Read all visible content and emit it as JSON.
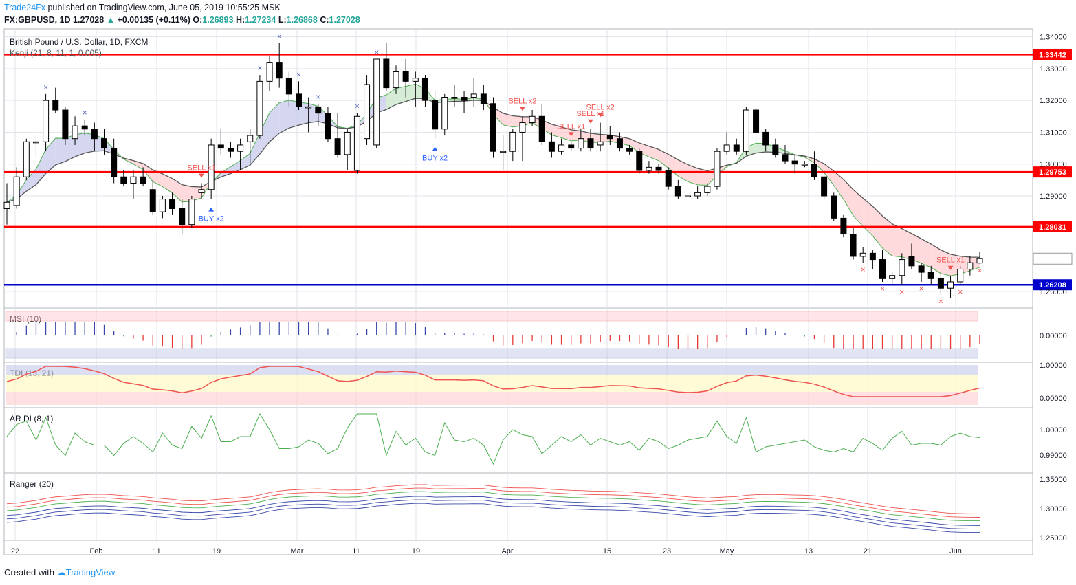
{
  "header": {
    "brand": "Trade24Fx",
    "published": " published on TradingView.com, June 05, 2019 10:55:25 MSK",
    "symbol": "FX:GBPUSD, 1D",
    "last": "1.27028",
    "change": "+0.00135 (+0.11%)",
    "o_label": "O:",
    "o": "1.26893",
    "h_label": "H:",
    "h": "1.27234",
    "l_label": "L:",
    "l": "1.26868",
    "c_label": "C:",
    "c": "1.27028"
  },
  "footer": {
    "created": "Created with",
    "brand": "TradingView"
  },
  "chart_data": {
    "type": "candlestick",
    "title": "British Pound / U.S. Dollar, 1D, FXCM",
    "indicator_label": "Kenji (21, 8, 11, 1, 0.005)",
    "x_ticks": [
      "22",
      "Feb",
      "11",
      "19",
      "Mar",
      "11",
      "19",
      "Apr",
      "15",
      "23",
      "May",
      "13",
      "21",
      "Jun"
    ],
    "y_ticks": [
      "1.34000",
      "1.33000",
      "1.32000",
      "1.31000",
      "1.30000",
      "1.29000",
      "1.27028",
      "1.26000"
    ],
    "y_range": [
      1.255,
      1.3425
    ],
    "horizontal_levels": [
      {
        "value": 1.33442,
        "label": "1.33442",
        "color": "#ff0000"
      },
      {
        "value": 1.29753,
        "label": "1.29753",
        "color": "#ff0000"
      },
      {
        "value": 1.28031,
        "label": "1.28031",
        "color": "#ff0000"
      },
      {
        "value": 1.26208,
        "label": "1.26208",
        "color": "#0000cc"
      }
    ],
    "last_price_label": "1.27028",
    "signals": [
      {
        "text": "SELL x1",
        "index": 20
      },
      {
        "text": "BUY x2",
        "index": 21
      },
      {
        "text": "BUY x2",
        "index": 44
      },
      {
        "text": "SELL x2",
        "index": 53
      },
      {
        "text": "SELL x1",
        "index": 58
      },
      {
        "text": "SELL x1",
        "index": 60
      },
      {
        "text": "SELL x2",
        "index": 61
      },
      {
        "text": "SELL x1",
        "index": 97
      }
    ],
    "candles": [
      [
        1.286,
        1.294,
        1.281,
        1.288
      ],
      [
        1.287,
        1.299,
        1.286,
        1.296
      ],
      [
        1.296,
        1.308,
        1.295,
        1.307
      ],
      [
        1.307,
        1.309,
        1.302,
        1.307
      ],
      [
        1.307,
        1.322,
        1.304,
        1.32
      ],
      [
        1.32,
        1.324,
        1.316,
        1.317
      ],
      [
        1.317,
        1.318,
        1.306,
        1.308
      ],
      [
        1.308,
        1.315,
        1.306,
        1.312
      ],
      [
        1.312,
        1.314,
        1.309,
        1.311
      ],
      [
        1.311,
        1.313,
        1.304,
        1.308
      ],
      [
        1.308,
        1.311,
        1.303,
        1.305
      ],
      [
        1.305,
        1.308,
        1.294,
        1.296
      ],
      [
        1.296,
        1.298,
        1.293,
        1.294
      ],
      [
        1.294,
        1.298,
        1.289,
        1.296
      ],
      [
        1.296,
        1.299,
        1.293,
        1.294
      ],
      [
        1.292,
        1.295,
        1.284,
        1.285
      ],
      [
        1.285,
        1.29,
        1.283,
        1.289
      ],
      [
        1.289,
        1.291,
        1.284,
        1.286
      ],
      [
        1.286,
        1.289,
        1.278,
        1.281
      ],
      [
        1.281,
        1.29,
        1.28,
        1.289
      ],
      [
        1.291,
        1.294,
        1.289,
        1.292
      ],
      [
        1.292,
        1.308,
        1.289,
        1.306
      ],
      [
        1.306,
        1.311,
        1.303,
        1.305
      ],
      [
        1.305,
        1.307,
        1.302,
        1.304
      ],
      [
        1.304,
        1.308,
        1.298,
        1.306
      ],
      [
        1.307,
        1.311,
        1.3,
        1.309
      ],
      [
        1.309,
        1.328,
        1.308,
        1.326
      ],
      [
        1.326,
        1.334,
        1.323,
        1.332
      ],
      [
        1.332,
        1.338,
        1.324,
        1.327
      ],
      [
        1.327,
        1.329,
        1.318,
        1.322
      ],
      [
        1.322,
        1.326,
        1.317,
        1.318
      ],
      [
        1.318,
        1.321,
        1.31,
        1.318
      ],
      [
        1.318,
        1.319,
        1.312,
        1.316
      ],
      [
        1.316,
        1.318,
        1.307,
        1.308
      ],
      [
        1.308,
        1.316,
        1.302,
        1.303
      ],
      [
        1.303,
        1.311,
        1.298,
        1.31
      ],
      [
        1.298,
        1.316,
        1.297,
        1.315
      ],
      [
        1.308,
        1.328,
        1.306,
        1.325
      ],
      [
        1.306,
        1.333,
        1.305,
        1.333
      ],
      [
        1.333,
        1.338,
        1.323,
        1.324
      ],
      [
        1.324,
        1.331,
        1.322,
        1.329
      ],
      [
        1.329,
        1.333,
        1.321,
        1.326
      ],
      [
        1.326,
        1.329,
        1.318,
        1.327
      ],
      [
        1.327,
        1.328,
        1.318,
        1.32
      ],
      [
        1.32,
        1.323,
        1.308,
        1.311
      ],
      [
        1.311,
        1.322,
        1.309,
        1.321
      ],
      [
        1.321,
        1.325,
        1.318,
        1.321
      ],
      [
        1.321,
        1.323,
        1.316,
        1.32
      ],
      [
        1.321,
        1.327,
        1.318,
        1.322
      ],
      [
        1.322,
        1.325,
        1.317,
        1.319
      ],
      [
        1.319,
        1.321,
        1.302,
        1.304
      ],
      [
        1.304,
        1.309,
        1.298,
        1.304
      ],
      [
        1.304,
        1.311,
        1.301,
        1.31
      ],
      [
        1.31,
        1.315,
        1.301,
        1.313
      ],
      [
        1.313,
        1.317,
        1.312,
        1.315
      ],
      [
        1.315,
        1.319,
        1.306,
        1.307
      ],
      [
        1.307,
        1.31,
        1.302,
        1.304
      ],
      [
        1.304,
        1.308,
        1.303,
        1.306
      ],
      [
        1.306,
        1.307,
        1.304,
        1.305
      ],
      [
        1.305,
        1.311,
        1.304,
        1.308
      ],
      [
        1.308,
        1.311,
        1.304,
        1.305
      ],
      [
        1.306,
        1.313,
        1.304,
        1.307
      ],
      [
        1.309,
        1.312,
        1.306,
        1.308
      ],
      [
        1.308,
        1.31,
        1.304,
        1.305
      ],
      [
        1.305,
        1.306,
        1.303,
        1.304
      ],
      [
        1.304,
        1.305,
        1.297,
        1.298
      ],
      [
        1.298,
        1.301,
        1.297,
        1.299
      ],
      [
        1.299,
        1.3,
        1.297,
        1.298
      ],
      [
        1.298,
        1.299,
        1.292,
        1.293
      ],
      [
        1.293,
        1.295,
        1.289,
        1.29
      ],
      [
        1.29,
        1.291,
        1.288,
        1.29
      ],
      [
        1.29,
        1.293,
        1.289,
        1.291
      ],
      [
        1.291,
        1.294,
        1.29,
        1.293
      ],
      [
        1.293,
        1.305,
        1.292,
        1.304
      ],
      [
        1.304,
        1.31,
        1.303,
        1.306
      ],
      [
        1.306,
        1.308,
        1.303,
        1.304
      ],
      [
        1.304,
        1.318,
        1.303,
        1.317
      ],
      [
        1.317,
        1.318,
        1.307,
        1.31
      ],
      [
        1.31,
        1.311,
        1.304,
        1.306
      ],
      [
        1.306,
        1.308,
        1.302,
        1.303
      ],
      [
        1.303,
        1.306,
        1.3,
        1.301
      ],
      [
        1.301,
        1.303,
        1.297,
        1.3
      ],
      [
        1.3,
        1.301,
        1.299,
        1.3
      ],
      [
        1.3,
        1.304,
        1.295,
        1.296
      ],
      [
        1.296,
        1.298,
        1.289,
        1.29
      ],
      [
        1.29,
        1.291,
        1.282,
        1.283
      ],
      [
        1.283,
        1.284,
        1.277,
        1.278
      ],
      [
        1.278,
        1.28,
        1.27,
        1.271
      ],
      [
        1.271,
        1.274,
        1.269,
        1.272
      ],
      [
        1.272,
        1.273,
        1.267,
        1.27
      ],
      [
        1.27,
        1.273,
        1.263,
        1.264
      ],
      [
        1.264,
        1.266,
        1.262,
        1.265
      ],
      [
        1.265,
        1.272,
        1.262,
        1.27
      ],
      [
        1.271,
        1.275,
        1.267,
        1.268
      ],
      [
        1.268,
        1.269,
        1.263,
        1.266
      ],
      [
        1.266,
        1.268,
        1.262,
        1.264
      ],
      [
        1.264,
        1.266,
        1.259,
        1.261
      ],
      [
        1.261,
        1.265,
        1.258,
        1.263
      ],
      [
        1.263,
        1.268,
        1.262,
        1.267
      ],
      [
        1.267,
        1.271,
        1.265,
        1.269
      ],
      [
        1.2689,
        1.2723,
        1.2687,
        1.2703
      ]
    ],
    "panes": [
      {
        "name": "MSI (10)",
        "y_ticks": [
          "0.00000"
        ]
      },
      {
        "name": "TDI (13, 21)",
        "y_ticks": [
          "1.00000",
          "0.00000"
        ]
      },
      {
        "name": "AR DI (8, 1)",
        "y_ticks": [
          "1.00000",
          "0.99000"
        ]
      },
      {
        "name": "Ranger (20)",
        "y_ticks": [
          "1.35000",
          "1.30000",
          "1.25000"
        ]
      }
    ],
    "colors": {
      "bull": "#ffffff",
      "bear": "#000000",
      "sell": "#ef5350",
      "buy": "#2962ff",
      "grid": "#e0e3eb"
    }
  }
}
